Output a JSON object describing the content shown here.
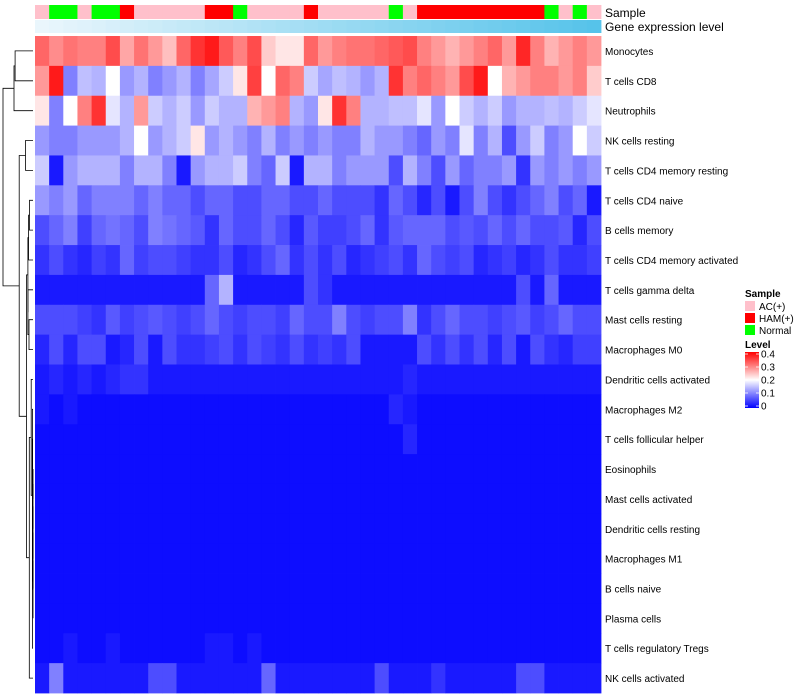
{
  "chart_data": {
    "type": "heatmap",
    "annotation_labels": [
      "Sample",
      "Gene expression level"
    ],
    "legends": {
      "sample": {
        "title": "Sample",
        "entries": [
          {
            "label": "AC(+)",
            "color": "#ffc0cb"
          },
          {
            "label": "HAM(+)",
            "color": "#ff0000"
          },
          {
            "label": "Normal",
            "color": "#00ff00"
          }
        ]
      },
      "level": {
        "title": "Level",
        "range": [
          0,
          0.4
        ],
        "ticks": [
          "0.4",
          "0.3",
          "0.2",
          "0.1",
          "0"
        ],
        "colors": {
          "low": "#0000ff",
          "mid": "#ffffff",
          "high": "#ff0000",
          "mid_value": 0.2
        }
      }
    },
    "sample_groups": [
      "AC",
      "N",
      "N",
      "AC",
      "N",
      "N",
      "H",
      "AC",
      "AC",
      "AC",
      "AC",
      "AC",
      "H",
      "H",
      "N",
      "AC",
      "AC",
      "AC",
      "AC",
      "H",
      "AC",
      "AC",
      "AC",
      "AC",
      "AC",
      "N",
      "AC",
      "H",
      "H",
      "H",
      "H",
      "H",
      "H",
      "H",
      "H",
      "H",
      "N",
      "AC",
      "N",
      "AC"
    ],
    "expression_gradient": {
      "from": "#eaf6fc",
      "to": "#56c3ea"
    },
    "rows": [
      {
        "name": "Monocytes",
        "base": 0.3,
        "values": [
          0.32,
          0.29,
          0.31,
          0.3,
          0.3,
          0.34,
          0.27,
          0.31,
          0.28,
          0.25,
          0.32,
          0.36,
          0.38,
          0.33,
          0.3,
          0.34,
          0.24,
          0.22,
          0.22,
          0.32,
          0.28,
          0.3,
          0.31,
          0.31,
          0.32,
          0.33,
          0.34,
          0.3,
          0.28,
          0.26,
          0.28,
          0.3,
          0.32,
          0.28,
          0.37,
          0.3,
          0.26,
          0.28,
          0.3,
          0.28
        ]
      },
      {
        "name": "T cells CD8",
        "base": 0.12,
        "values": [
          0.28,
          0.38,
          0.1,
          0.15,
          0.14,
          0.2,
          0.12,
          0.14,
          0.1,
          0.12,
          0.14,
          0.1,
          0.13,
          0.16,
          0.22,
          0.35,
          0.2,
          0.32,
          0.3,
          0.16,
          0.13,
          0.15,
          0.14,
          0.12,
          0.14,
          0.36,
          0.3,
          0.32,
          0.3,
          0.28,
          0.34,
          0.38,
          0.2,
          0.26,
          0.28,
          0.3,
          0.3,
          0.28,
          0.3,
          0.24
        ]
      },
      {
        "name": "Neutrophils",
        "base": 0.14,
        "values": [
          0.22,
          0.1,
          0.2,
          0.3,
          0.36,
          0.18,
          0.14,
          0.28,
          0.16,
          0.14,
          0.16,
          0.12,
          0.16,
          0.14,
          0.14,
          0.26,
          0.28,
          0.3,
          0.14,
          0.12,
          0.22,
          0.36,
          0.3,
          0.14,
          0.14,
          0.15,
          0.15,
          0.18,
          0.12,
          0.2,
          0.16,
          0.14,
          0.16,
          0.12,
          0.14,
          0.14,
          0.15,
          0.14,
          0.16,
          0.18
        ]
      },
      {
        "name": "NK cells resting",
        "base": 0.12,
        "values": [
          0.12,
          0.1,
          0.1,
          0.12,
          0.12,
          0.12,
          0.14,
          0.2,
          0.12,
          0.14,
          0.16,
          0.22,
          0.12,
          0.14,
          0.12,
          0.1,
          0.14,
          0.1,
          0.12,
          0.1,
          0.12,
          0.1,
          0.1,
          0.14,
          0.12,
          0.12,
          0.1,
          0.08,
          0.12,
          0.1,
          0.18,
          0.1,
          0.14,
          0.06,
          0.12,
          0.16,
          0.1,
          0.12,
          0.2,
          0.16
        ]
      },
      {
        "name": "T cells CD4 memory resting",
        "base": 0.12,
        "values": [
          0.16,
          0.02,
          0.12,
          0.14,
          0.14,
          0.14,
          0.1,
          0.14,
          0.14,
          0.1,
          0.02,
          0.12,
          0.14,
          0.14,
          0.16,
          0.1,
          0.08,
          0.16,
          0.02,
          0.14,
          0.14,
          0.1,
          0.12,
          0.12,
          0.12,
          0.06,
          0.14,
          0.1,
          0.06,
          0.12,
          0.08,
          0.1,
          0.1,
          0.12,
          0.04,
          0.12,
          0.1,
          0.12,
          0.1,
          0.12
        ]
      },
      {
        "name": "T cells CD4 naive",
        "base": 0.08,
        "values": [
          0.12,
          0.1,
          0.12,
          0.08,
          0.1,
          0.1,
          0.1,
          0.08,
          0.1,
          0.08,
          0.08,
          0.06,
          0.08,
          0.08,
          0.06,
          0.06,
          0.08,
          0.08,
          0.06,
          0.06,
          0.08,
          0.06,
          0.06,
          0.06,
          0.04,
          0.08,
          0.06,
          0.03,
          0.06,
          0.02,
          0.06,
          0.1,
          0.06,
          0.04,
          0.06,
          0.08,
          0.1,
          0.06,
          0.08,
          0.02
        ]
      },
      {
        "name": "B cells memory",
        "base": 0.07,
        "values": [
          0.06,
          0.08,
          0.1,
          0.05,
          0.08,
          0.09,
          0.08,
          0.06,
          0.1,
          0.09,
          0.08,
          0.07,
          0.04,
          0.08,
          0.06,
          0.06,
          0.08,
          0.06,
          0.03,
          0.07,
          0.05,
          0.05,
          0.06,
          0.08,
          0.04,
          0.07,
          0.08,
          0.08,
          0.08,
          0.06,
          0.07,
          0.06,
          0.08,
          0.06,
          0.08,
          0.06,
          0.06,
          0.07,
          0.03,
          0.06
        ]
      },
      {
        "name": "T cells CD4 memory activated",
        "base": 0.05,
        "values": [
          0.04,
          0.06,
          0.04,
          0.03,
          0.05,
          0.04,
          0.08,
          0.05,
          0.06,
          0.06,
          0.05,
          0.04,
          0.04,
          0.06,
          0.03,
          0.04,
          0.06,
          0.08,
          0.04,
          0.06,
          0.04,
          0.06,
          0.03,
          0.04,
          0.05,
          0.06,
          0.04,
          0.08,
          0.06,
          0.05,
          0.06,
          0.03,
          0.04,
          0.05,
          0.03,
          0.04,
          0.06,
          0.04,
          0.04,
          0.05
        ]
      },
      {
        "name": "T cells gamma delta",
        "base": 0.02,
        "values": [
          0.02,
          0.02,
          0.02,
          0.02,
          0.02,
          0.02,
          0.02,
          0.02,
          0.02,
          0.02,
          0.02,
          0.02,
          0.08,
          0.14,
          0.02,
          0.02,
          0.02,
          0.02,
          0.02,
          0.06,
          0.04,
          0.02,
          0.02,
          0.02,
          0.02,
          0.02,
          0.02,
          0.02,
          0.02,
          0.02,
          0.02,
          0.02,
          0.02,
          0.02,
          0.06,
          0.02,
          0.08,
          0.02,
          0.02,
          0.02
        ]
      },
      {
        "name": "Mast cells resting",
        "base": 0.06,
        "values": [
          0.06,
          0.06,
          0.06,
          0.05,
          0.04,
          0.07,
          0.05,
          0.06,
          0.07,
          0.06,
          0.05,
          0.06,
          0.08,
          0.06,
          0.05,
          0.06,
          0.06,
          0.05,
          0.08,
          0.06,
          0.06,
          0.1,
          0.06,
          0.05,
          0.06,
          0.06,
          0.1,
          0.04,
          0.06,
          0.08,
          0.06,
          0.06,
          0.05,
          0.06,
          0.07,
          0.05,
          0.06,
          0.08,
          0.06,
          0.06
        ]
      },
      {
        "name": "Macrophages M0",
        "base": 0.05,
        "values": [
          0.03,
          0.06,
          0.03,
          0.06,
          0.06,
          0.02,
          0.03,
          0.06,
          0.02,
          0.06,
          0.04,
          0.04,
          0.05,
          0.06,
          0.04,
          0.06,
          0.05,
          0.04,
          0.06,
          0.04,
          0.05,
          0.04,
          0.06,
          0.02,
          0.02,
          0.02,
          0.02,
          0.06,
          0.04,
          0.06,
          0.04,
          0.06,
          0.03,
          0.06,
          0.02,
          0.06,
          0.04,
          0.03,
          0.05,
          0.05
        ]
      },
      {
        "name": "Dendritic cells activated",
        "base": 0.02,
        "values": [
          0.02,
          0.03,
          0.02,
          0.03,
          0.02,
          0.03,
          0.04,
          0.04,
          0.02,
          0.02,
          0.02,
          0.02,
          0.02,
          0.02,
          0.02,
          0.02,
          0.02,
          0.02,
          0.02,
          0.02,
          0.02,
          0.02,
          0.02,
          0.02,
          0.02,
          0.02,
          0.03,
          0.02,
          0.02,
          0.02,
          0.02,
          0.02,
          0.02,
          0.02,
          0.02,
          0.02,
          0.02,
          0.02,
          0.02,
          0.02
        ]
      },
      {
        "name": "Macrophages M2",
        "base": 0.01,
        "values": [
          0.02,
          0.01,
          0.02,
          0.01,
          0.01,
          0.01,
          0.01,
          0.01,
          0.01,
          0.01,
          0.01,
          0.01,
          0.01,
          0.01,
          0.01,
          0.01,
          0.01,
          0.01,
          0.01,
          0.01,
          0.01,
          0.01,
          0.01,
          0.01,
          0.01,
          0.03,
          0.02,
          0.01,
          0.01,
          0.01,
          0.01,
          0.01,
          0.01,
          0.01,
          0.01,
          0.01,
          0.01,
          0.01,
          0.01,
          0.01
        ]
      },
      {
        "name": "T cells follicular helper",
        "base": 0.01,
        "values": [
          0.01,
          0.01,
          0.01,
          0.01,
          0.01,
          0.01,
          0.01,
          0.01,
          0.01,
          0.01,
          0.01,
          0.01,
          0.01,
          0.01,
          0.01,
          0.01,
          0.01,
          0.01,
          0.01,
          0.01,
          0.01,
          0.01,
          0.01,
          0.01,
          0.01,
          0.01,
          0.03,
          0.01,
          0.01,
          0.01,
          0.01,
          0.01,
          0.01,
          0.01,
          0.01,
          0.01,
          0.01,
          0.01,
          0.01,
          0.01
        ]
      },
      {
        "name": "Eosinophils",
        "base": 0.01,
        "values": [
          0.01,
          0.01,
          0.01,
          0.01,
          0.01,
          0.01,
          0.01,
          0.01,
          0.01,
          0.01,
          0.01,
          0.01,
          0.01,
          0.01,
          0.01,
          0.01,
          0.01,
          0.01,
          0.01,
          0.01,
          0.01,
          0.01,
          0.01,
          0.01,
          0.01,
          0.01,
          0.01,
          0.01,
          0.01,
          0.01,
          0.01,
          0.01,
          0.01,
          0.01,
          0.01,
          0.01,
          0.01,
          0.01,
          0.01,
          0.01
        ]
      },
      {
        "name": "Mast cells activated",
        "base": 0.01,
        "values": [
          0.01,
          0.01,
          0.01,
          0.01,
          0.01,
          0.01,
          0.01,
          0.01,
          0.01,
          0.01,
          0.01,
          0.01,
          0.01,
          0.01,
          0.01,
          0.01,
          0.01,
          0.01,
          0.01,
          0.01,
          0.01,
          0.01,
          0.01,
          0.01,
          0.01,
          0.01,
          0.01,
          0.01,
          0.01,
          0.01,
          0.01,
          0.01,
          0.01,
          0.01,
          0.01,
          0.01,
          0.01,
          0.01,
          0.01,
          0.01
        ]
      },
      {
        "name": "Dendritic cells resting",
        "base": 0.01,
        "values": [
          0.01,
          0.01,
          0.01,
          0.01,
          0.01,
          0.01,
          0.01,
          0.01,
          0.01,
          0.01,
          0.01,
          0.01,
          0.01,
          0.01,
          0.01,
          0.01,
          0.01,
          0.01,
          0.01,
          0.01,
          0.01,
          0.01,
          0.01,
          0.01,
          0.01,
          0.01,
          0.01,
          0.01,
          0.01,
          0.01,
          0.01,
          0.01,
          0.01,
          0.01,
          0.01,
          0.01,
          0.01,
          0.01,
          0.01,
          0.01
        ]
      },
      {
        "name": "Macrophages M1",
        "base": 0.01,
        "values": [
          0.01,
          0.01,
          0.01,
          0.01,
          0.01,
          0.01,
          0.01,
          0.01,
          0.01,
          0.01,
          0.01,
          0.01,
          0.01,
          0.01,
          0.01,
          0.01,
          0.01,
          0.01,
          0.01,
          0.01,
          0.01,
          0.01,
          0.01,
          0.01,
          0.01,
          0.01,
          0.01,
          0.01,
          0.01,
          0.01,
          0.01,
          0.01,
          0.01,
          0.01,
          0.01,
          0.01,
          0.01,
          0.01,
          0.01,
          0.01
        ]
      },
      {
        "name": "B cells naive",
        "base": 0.01,
        "values": [
          0.01,
          0.01,
          0.01,
          0.01,
          0.01,
          0.01,
          0.01,
          0.01,
          0.01,
          0.01,
          0.01,
          0.01,
          0.01,
          0.01,
          0.01,
          0.01,
          0.01,
          0.01,
          0.01,
          0.01,
          0.01,
          0.01,
          0.01,
          0.01,
          0.01,
          0.01,
          0.01,
          0.01,
          0.01,
          0.01,
          0.01,
          0.01,
          0.01,
          0.01,
          0.01,
          0.01,
          0.01,
          0.01,
          0.01,
          0.01
        ]
      },
      {
        "name": "Plasma cells",
        "base": 0.01,
        "values": [
          0.01,
          0.01,
          0.01,
          0.01,
          0.01,
          0.01,
          0.01,
          0.01,
          0.01,
          0.01,
          0.01,
          0.01,
          0.01,
          0.01,
          0.01,
          0.01,
          0.01,
          0.01,
          0.01,
          0.01,
          0.01,
          0.01,
          0.01,
          0.01,
          0.01,
          0.01,
          0.01,
          0.01,
          0.01,
          0.01,
          0.01,
          0.01,
          0.01,
          0.01,
          0.01,
          0.01,
          0.01,
          0.01,
          0.01,
          0.01
        ]
      },
      {
        "name": "T cells regulatory  Tregs",
        "base": 0.01,
        "values": [
          0.01,
          0.01,
          0.02,
          0.01,
          0.01,
          0.02,
          0.01,
          0.01,
          0.01,
          0.01,
          0.01,
          0.01,
          0.02,
          0.02,
          0.01,
          0.02,
          0.01,
          0.01,
          0.01,
          0.01,
          0.01,
          0.01,
          0.01,
          0.01,
          0.01,
          0.01,
          0.01,
          0.01,
          0.01,
          0.01,
          0.01,
          0.01,
          0.01,
          0.01,
          0.01,
          0.01,
          0.01,
          0.01,
          0.01,
          0.01
        ]
      },
      {
        "name": "NK cells activated",
        "base": 0.02,
        "values": [
          0.02,
          0.1,
          0.02,
          0.02,
          0.02,
          0.02,
          0.02,
          0.02,
          0.06,
          0.06,
          0.02,
          0.02,
          0.02,
          0.02,
          0.02,
          0.02,
          0.08,
          0.02,
          0.02,
          0.02,
          0.02,
          0.02,
          0.02,
          0.02,
          0.06,
          0.02,
          0.02,
          0.02,
          0.04,
          0.02,
          0.02,
          0.02,
          0.02,
          0.02,
          0.06,
          0.06,
          0.02,
          0.02,
          0.02,
          0.02
        ]
      }
    ]
  }
}
